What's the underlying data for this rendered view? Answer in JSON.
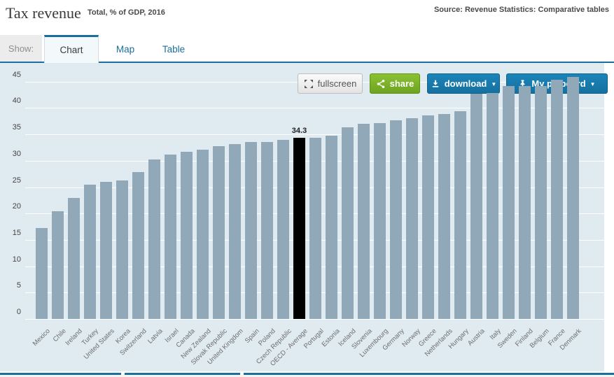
{
  "header": {
    "title": "Tax revenue",
    "subtitle": "Total, % of GDP, 2016",
    "source": "Source: Revenue Statistics: Comparative tables"
  },
  "toolbar": {
    "show_label": "Show:",
    "tabs": [
      {
        "label": "Chart",
        "active": true
      },
      {
        "label": "Map",
        "active": false
      },
      {
        "label": "Table",
        "active": false
      }
    ],
    "fullscreen_label": "fullscreen",
    "share_label": "share",
    "download_label": "download",
    "pinboard_label": "My pinboard",
    "caret": "▼"
  },
  "chart_data": {
    "type": "bar",
    "title": "Tax revenue",
    "subtitle": "Total, % of GDP, 2016",
    "xlabel": "",
    "ylabel": "",
    "ylim": [
      0,
      47
    ],
    "yticks": [
      0,
      5,
      10,
      15,
      20,
      25,
      30,
      35,
      40,
      45
    ],
    "grid": true,
    "legend": "none",
    "categories": [
      "Mexico",
      "Chile",
      "Ireland",
      "Turkey",
      "United States",
      "Korea",
      "Switzerland",
      "Latvia",
      "Israel",
      "Canada",
      "New Zealand",
      "Slovak Republic",
      "United Kingdom",
      "Spain",
      "Poland",
      "Czech Republic",
      "OECD - Average",
      "Portugal",
      "Estonia",
      "Iceland",
      "Slovenia",
      "Luxembourg",
      "Germany",
      "Norway",
      "Greece",
      "Netherlands",
      "Hungary",
      "Austria",
      "Italy",
      "Sweden",
      "Finland",
      "Belgium",
      "France",
      "Denmark"
    ],
    "values": [
      17.2,
      20.4,
      23.0,
      25.5,
      26.0,
      26.3,
      27.8,
      30.2,
      31.2,
      31.7,
      32.1,
      32.7,
      33.2,
      33.5,
      33.6,
      34.0,
      34.3,
      34.4,
      34.7,
      36.4,
      37.0,
      37.1,
      37.6,
      38.0,
      38.6,
      38.8,
      39.4,
      42.7,
      42.9,
      44.1,
      44.1,
      44.2,
      45.3,
      45.9
    ],
    "highlight_index": 16,
    "highlight_value_label": "34.3",
    "bar_color": "#91a8b8",
    "highlight_color": "#000000",
    "plot_background": "#dfeaf1",
    "gridline_color": "#ffffff"
  }
}
